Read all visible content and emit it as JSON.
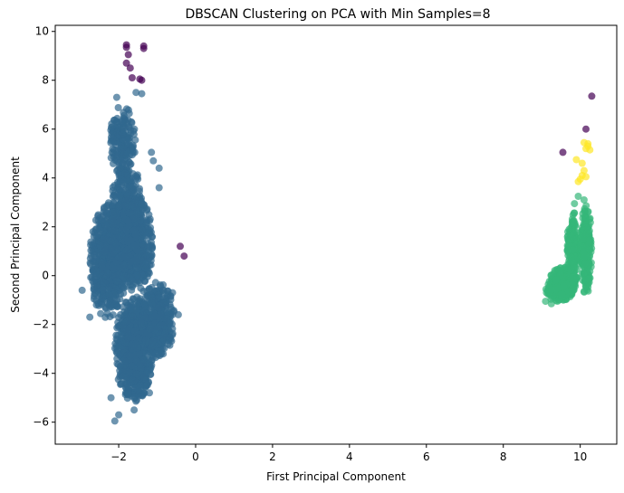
{
  "chart_data": {
    "type": "scatter",
    "title": "DBSCAN Clustering on PCA with Min Samples=8",
    "xlabel": "First Principal Component",
    "ylabel": "Second Principal Component",
    "xlim": [
      -3.65,
      10.95
    ],
    "ylim": [
      -6.9,
      10.25
    ],
    "xticks": [
      -2,
      0,
      2,
      4,
      6,
      8,
      10
    ],
    "yticks": [
      -6,
      -4,
      -2,
      0,
      2,
      4,
      6,
      8,
      10
    ],
    "xtick_labels": [
      "−2",
      "0",
      "2",
      "4",
      "6",
      "8",
      "10"
    ],
    "ytick_labels": [
      "−6",
      "−4",
      "−2",
      "0",
      "2",
      "4",
      "6",
      "8",
      "10"
    ],
    "grid": false,
    "legend": "none",
    "colors": {
      "noise": "#440154",
      "cluster_0": "#31688e",
      "cluster_1": "#35b779",
      "cluster_2": "#fde725"
    },
    "series": [
      {
        "cluster": "noise",
        "points": [
          [
            -1.8,
            9.45
          ],
          [
            -1.8,
            9.35
          ],
          [
            -1.35,
            9.4
          ],
          [
            -1.35,
            9.3
          ],
          [
            -1.75,
            9.05
          ],
          [
            -1.8,
            8.7
          ],
          [
            -1.7,
            8.5
          ],
          [
            -1.65,
            8.1
          ],
          [
            -1.45,
            8.05
          ],
          [
            -1.4,
            8.0
          ],
          [
            -0.4,
            1.2
          ],
          [
            -0.3,
            0.8
          ],
          [
            9.55,
            5.05
          ],
          [
            10.15,
            6.0
          ],
          [
            10.3,
            7.35
          ]
        ]
      },
      {
        "cluster": "cluster_0",
        "regions": [
          {
            "cx": -2.3,
            "cy": 0.6,
            "rx": 0.45,
            "ry": 2.4,
            "n": 700
          },
          {
            "cx": -1.8,
            "cy": 2.0,
            "rx": 0.45,
            "ry": 2.8,
            "n": 700
          },
          {
            "cx": -1.6,
            "cy": -3.0,
            "rx": 0.5,
            "ry": 2.2,
            "n": 900
          },
          {
            "cx": -1.0,
            "cy": -1.8,
            "rx": 0.45,
            "ry": 1.6,
            "n": 500
          },
          {
            "cx": -1.9,
            "cy": 5.5,
            "rx": 0.35,
            "ry": 1.5,
            "n": 200
          },
          {
            "cx": -1.5,
            "cy": 1.2,
            "rx": 0.4,
            "ry": 2.0,
            "n": 400
          }
        ],
        "outliers": [
          [
            -1.55,
            7.5
          ],
          [
            -1.4,
            7.45
          ],
          [
            -2.05,
            7.3
          ],
          [
            -1.15,
            5.05
          ],
          [
            -1.1,
            4.7
          ],
          [
            -0.95,
            4.4
          ],
          [
            -0.95,
            3.6
          ],
          [
            -2.95,
            -0.6
          ],
          [
            -2.75,
            -1.7
          ],
          [
            -2.1,
            -5.95
          ],
          [
            -2.0,
            -5.7
          ],
          [
            -1.6,
            -5.5
          ],
          [
            -0.6,
            -0.7
          ],
          [
            -0.45,
            -1.6
          ],
          [
            -2.2,
            -5.0
          ],
          [
            -1.2,
            -4.8
          ]
        ]
      },
      {
        "cluster": "cluster_1",
        "regions": [
          {
            "cx": 9.55,
            "cy": -0.3,
            "rx": 0.35,
            "ry": 0.7,
            "n": 350
          },
          {
            "cx": 9.8,
            "cy": 0.9,
            "rx": 0.15,
            "ry": 1.8,
            "n": 250
          },
          {
            "cx": 10.15,
            "cy": 1.1,
            "rx": 0.15,
            "ry": 1.9,
            "n": 250
          },
          {
            "cx": 9.4,
            "cy": -0.6,
            "rx": 0.3,
            "ry": 0.5,
            "n": 150
          }
        ],
        "outliers": [
          [
            9.95,
            3.25
          ],
          [
            10.1,
            3.1
          ],
          [
            9.85,
            2.95
          ],
          [
            9.1,
            -1.05
          ],
          [
            9.25,
            -1.15
          ]
        ]
      },
      {
        "cluster": "cluster_2",
        "points": [
          [
            10.1,
            5.45
          ],
          [
            10.2,
            5.4
          ],
          [
            10.15,
            5.2
          ],
          [
            10.25,
            5.15
          ],
          [
            9.9,
            4.75
          ],
          [
            10.05,
            4.6
          ],
          [
            10.1,
            4.3
          ],
          [
            10.05,
            4.1
          ],
          [
            10.0,
            3.95
          ],
          [
            9.95,
            3.85
          ],
          [
            10.15,
            4.05
          ],
          [
            10.2,
            5.3
          ]
        ]
      }
    ]
  }
}
